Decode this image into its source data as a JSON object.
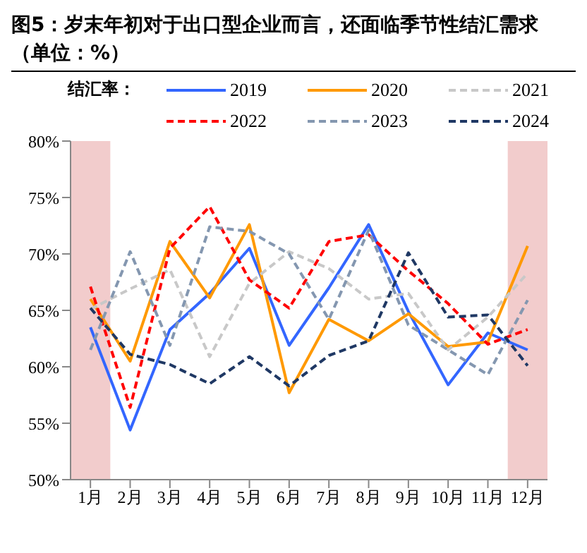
{
  "chart_data": {
    "type": "line",
    "title": "图5：岁末年初对于出口型企业而言，还面临季节性结汇需求（单位：%）",
    "legend_title": "结汇率：",
    "categories": [
      "1月",
      "2月",
      "3月",
      "4月",
      "5月",
      "6月",
      "7月",
      "8月",
      "9月",
      "10月",
      "11月",
      "12月"
    ],
    "series": [
      {
        "name": "2019",
        "color": "#3366ff",
        "line_style": "solid",
        "values": [
          63.5,
          54.4,
          63.3,
          66.5,
          70.5,
          61.9,
          67,
          72.6,
          64.9,
          58.4,
          63,
          61.5
        ]
      },
      {
        "name": "2020",
        "color": "#ff9900",
        "line_style": "solid",
        "values": [
          66,
          60.5,
          71.1,
          66.1,
          72.6,
          57.7,
          64.2,
          62.3,
          64.7,
          61.8,
          62.2,
          70.7
        ]
      },
      {
        "name": "2021",
        "color": "#c8c8c8",
        "line_style": "dashed",
        "values": [
          65.1,
          66.9,
          68.6,
          60.9,
          67.4,
          70.2,
          68.7,
          66,
          66.5,
          61.5,
          64.4,
          68.3
        ]
      },
      {
        "name": "2022",
        "color": "#ff0000",
        "line_style": "dashed",
        "values": [
          67.1,
          56.4,
          70.5,
          74.2,
          67.7,
          65.2,
          71.1,
          71.7,
          68.5,
          65.6,
          62,
          63.3
        ]
      },
      {
        "name": "2023",
        "color": "#8497b0",
        "line_style": "dashed",
        "values": [
          61.5,
          70.2,
          61.9,
          72.4,
          72,
          70,
          64.2,
          72.1,
          63.7,
          61.5,
          59.3,
          65.9
        ]
      },
      {
        "name": "2024",
        "color": "#1f3864",
        "line_style": "dashed",
        "values": [
          65.2,
          61.1,
          60.2,
          58.5,
          60.9,
          58.3,
          61,
          62.3,
          70.1,
          64.4,
          64.6,
          60.1
        ]
      }
    ],
    "ylim": [
      50,
      80
    ],
    "yticks": [
      {
        "value": 50,
        "label": "50%"
      },
      {
        "value": 55,
        "label": "55%"
      },
      {
        "value": 60,
        "label": "60%"
      },
      {
        "value": 65,
        "label": "65%"
      },
      {
        "value": 70,
        "label": "70%"
      },
      {
        "value": 75,
        "label": "75%"
      },
      {
        "value": 80,
        "label": "80%"
      }
    ],
    "bands": [
      {
        "axis": "x",
        "from": "1月",
        "to": "1月",
        "color": "#f2cccc"
      },
      {
        "axis": "x",
        "from": "12月",
        "to": "12月",
        "color": "#f2cccc"
      }
    ],
    "grid": false,
    "legend": "top",
    "marker": "none"
  }
}
